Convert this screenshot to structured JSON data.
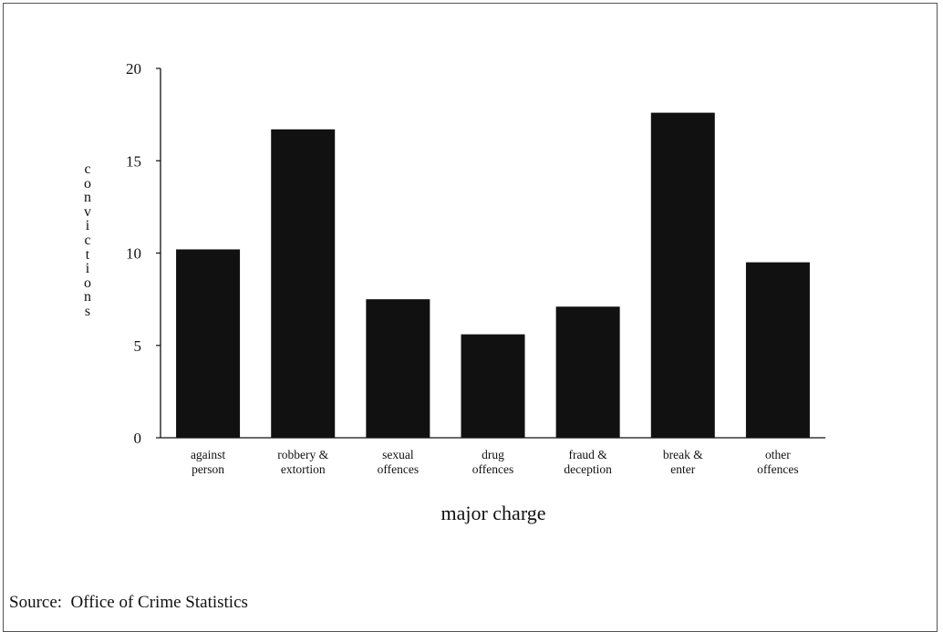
{
  "chart_data": {
    "type": "bar",
    "title": "",
    "xlabel": "major charge",
    "ylabel": "convictions",
    "categories": [
      [
        "against",
        "person"
      ],
      [
        "robbery &",
        "extortion"
      ],
      [
        "sexual",
        "offences"
      ],
      [
        "drug",
        "offences"
      ],
      [
        "fraud &",
        "deception"
      ],
      [
        "break &",
        "enter"
      ],
      [
        "other",
        "offences"
      ]
    ],
    "values": [
      10.2,
      16.7,
      7.5,
      5.6,
      7.1,
      17.6,
      9.5
    ],
    "ylim": [
      0,
      20
    ],
    "yticks": [
      0,
      5,
      10,
      15,
      20
    ],
    "grid": false,
    "bar_color": "#111111"
  },
  "source": {
    "label": "Source:",
    "text": "Office of Crime Statistics"
  }
}
